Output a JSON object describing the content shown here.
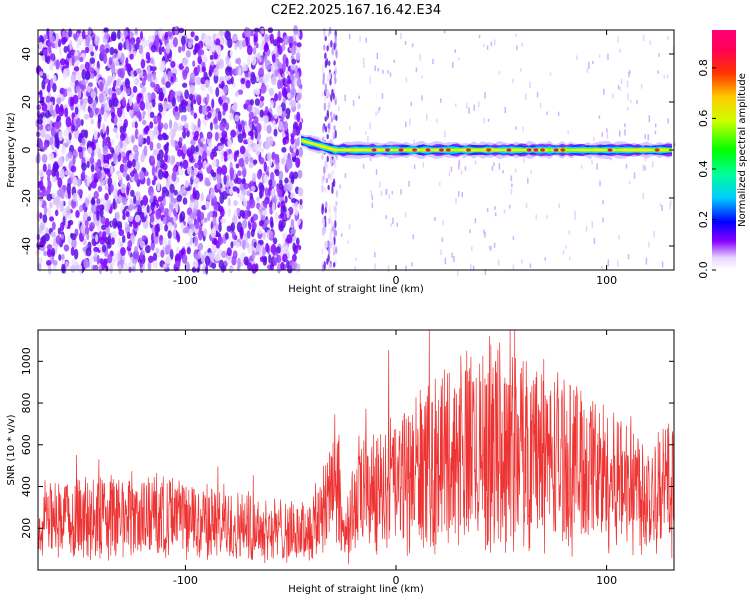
{
  "title": "C2E2.2025.167.16.42.E34",
  "chart_data": [
    {
      "type": "heatmap",
      "xlabel": "Height of straight line (km)",
      "ylabel": "Frequency (Hz)",
      "xlim": [
        -170,
        132
      ],
      "ylim": [
        -50,
        50
      ],
      "xticks": [
        -100,
        0,
        100
      ],
      "yticks": [
        -40,
        -20,
        0,
        20,
        40
      ],
      "colorbar": {
        "label": "Normalized spectral amplitude",
        "range": [
          0,
          0.95
        ],
        "ticks": [
          0.0,
          0.2,
          0.4,
          0.6,
          0.8
        ],
        "colormap": "rainbow (white-violet-blue-cyan-green-yellow-red-magenta)"
      },
      "description_values": {
        "noise_region_x": [
          -170,
          -45
        ],
        "gap_x": [
          -45,
          -28
        ],
        "noise_strip_x": [
          -35,
          -28
        ],
        "signal_line_x": [
          -45,
          132
        ],
        "signal_line_y": 0
      }
    },
    {
      "type": "line",
      "xlabel": "Height of straight line (km)",
      "ylabel": "SNR (10 * v/v)",
      "xlim": [
        -170,
        132
      ],
      "ylim": [
        0,
        1150
      ],
      "xticks": [
        -100,
        0,
        100
      ],
      "yticks": [
        200,
        400,
        600,
        800,
        1000
      ],
      "series": [
        {
          "color": "#ee3333",
          "x": [
            -170,
            -150,
            -130,
            -110,
            -90,
            -70,
            -50,
            -40,
            -35,
            -30,
            -25,
            -20,
            -10,
            0,
            10,
            20,
            30,
            40,
            50,
            60,
            70,
            80,
            90,
            100,
            110,
            120,
            132
          ],
          "y": [
            230,
            250,
            260,
            250,
            230,
            210,
            180,
            190,
            300,
            450,
            180,
            300,
            400,
            400,
            470,
            520,
            560,
            600,
            600,
            580,
            560,
            520,
            500,
            440,
            430,
            380,
            400
          ]
        }
      ]
    }
  ]
}
